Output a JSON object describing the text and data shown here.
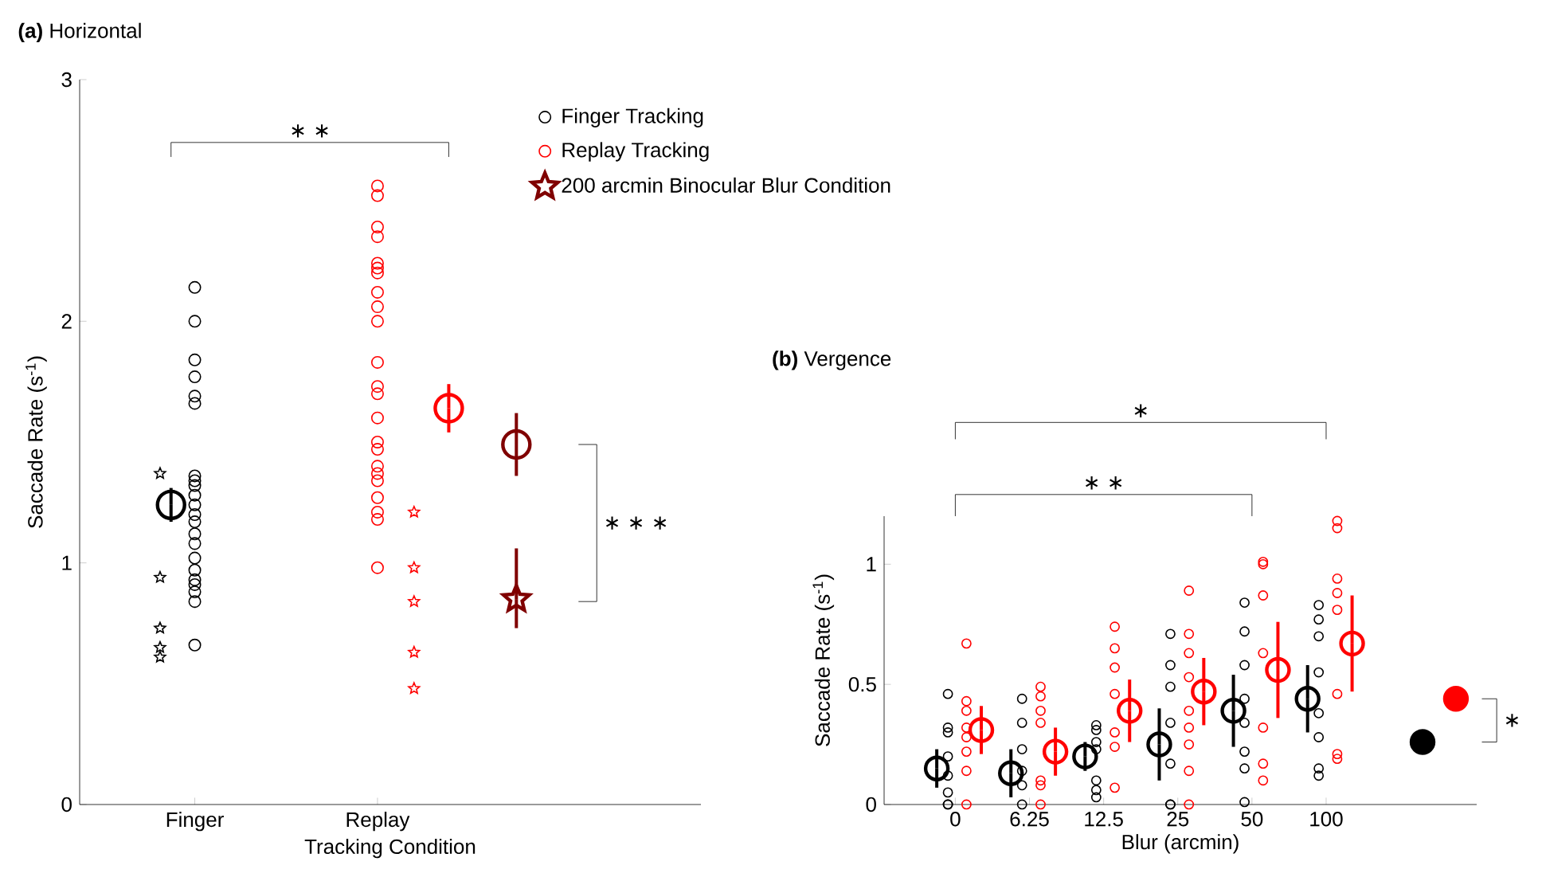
{
  "chart_data": [
    {
      "type": "scatter",
      "title": "**(a)** Horizontal",
      "xlabel": "Tracking Condition",
      "ylabel": "Saccade Rate (s$^{-1}$)",
      "categories": [
        "Finger",
        "Replay",
        null
      ],
      "ylim": [
        0,
        3
      ],
      "yticks": [
        0,
        1,
        2,
        3
      ],
      "legend": "top right",
      "annotations": [
        "∗ ∗",
        "∗ ∗ ∗"
      ],
      "series": [
        {
          "name": "Finger Tracking",
          "color": "#000000",
          "marker": "circle",
          "x": [
            "Finger",
            "Finger",
            "Finger",
            "Finger",
            "Finger",
            "Finger",
            "Finger",
            "Finger",
            "Finger",
            "Finger",
            "Finger",
            "Finger",
            "Finger",
            "Finger",
            "Finger",
            "Finger",
            "Finger",
            "Finger",
            "Finger",
            "Finger",
            "Finger",
            "Finger"
          ],
          "values": [
            2.14,
            2.0,
            1.84,
            1.77,
            1.69,
            1.66,
            1.36,
            1.34,
            1.32,
            1.28,
            1.24,
            1.2,
            1.17,
            1.12,
            1.08,
            1.02,
            0.97,
            0.93,
            0.91,
            0.88,
            0.84,
            0.66
          ]
        },
        {
          "name": "Replay Tracking",
          "color": "#ff0000",
          "marker": "circle",
          "x": [
            "Replay",
            "Replay",
            "Replay",
            "Replay",
            "Replay",
            "Replay",
            "Replay",
            "Replay",
            "Replay",
            "Replay",
            "Replay",
            "Replay",
            "Replay",
            "Replay",
            "Replay",
            "Replay",
            "Replay",
            "Replay",
            "Replay",
            "Replay",
            "Replay",
            "Replay",
            "Replay"
          ],
          "values": [
            2.56,
            2.52,
            2.39,
            2.35,
            2.24,
            2.22,
            2.2,
            2.12,
            2.06,
            2.0,
            1.83,
            1.73,
            1.7,
            1.6,
            1.5,
            1.47,
            1.4,
            1.37,
            1.34,
            1.27,
            1.21,
            1.18,
            0.98
          ]
        },
        {
          "color": "#000000",
          "marker": "star",
          "x": [
            "Finger",
            "Finger",
            "Finger",
            "Finger",
            "Finger"
          ],
          "values": [
            1.37,
            0.94,
            0.73,
            0.65,
            0.61
          ]
        },
        {
          "color": "#ff0000",
          "marker": "star",
          "x": [
            "Replay",
            "Replay",
            "Replay",
            "Replay",
            "Replay"
          ],
          "values": [
            1.21,
            0.98,
            0.84,
            0.63,
            0.48
          ]
        },
        {
          "color": "#000000",
          "marker": "circle",
          "x": [
            "Finger"
          ],
          "values": [
            1.24
          ],
          "errors": [
            0.07
          ]
        },
        {
          "color": "#ff0000",
          "marker": "circle",
          "x": [
            "Replay"
          ],
          "values": [
            1.64
          ],
          "errors": [
            0.1
          ]
        },
        {
          "color": "#800000",
          "marker": "circle",
          "values": [
            null,
            null,
            1.49
          ],
          "errors": [
            null,
            null,
            0.13
          ]
        },
        {
          "name": "200 arcmin Binocular Blur Condition",
          "color": "#800000",
          "marker": "star",
          "values": [
            null,
            null,
            0.85
          ],
          "errors": [
            null,
            null,
            [
              0.73,
              1.06
            ]
          ]
        }
      ]
    },
    {
      "type": "scatter",
      "title": "**(b)** Vergence",
      "xlabel": "Blur (arcmin)",
      "ylabel": "Saccade Rate (s$^{-1}$)",
      "categories": [
        "0",
        "6.25",
        "12.5",
        "25",
        "50",
        "100",
        null,
        null
      ],
      "ylim": [
        0,
        1.2
      ],
      "yticks": [
        0,
        0.5,
        1
      ],
      "annotations": [
        "∗",
        "∗ ∗",
        "∗"
      ],
      "series": [
        {
          "color": "#000000",
          "marker": "circle",
          "x": [
            "0",
            "0",
            "0",
            "0",
            "0",
            "0",
            "0",
            "0",
            "6.25",
            "6.25",
            "6.25",
            "6.25",
            "6.25",
            "6.25",
            "12.5",
            "12.5",
            "12.5",
            "12.5",
            "12.5",
            "12.5",
            "12.5",
            "25",
            "25",
            "25",
            "25",
            "25",
            "25",
            "25",
            "50",
            "50",
            "50",
            "50",
            "50",
            "50",
            "50",
            "50",
            "100",
            "100",
            "100",
            "100",
            "100",
            "100",
            "100",
            "100"
          ],
          "values": [
            0.46,
            0.32,
            0.3,
            0.2,
            0.12,
            0.05,
            0,
            0,
            0.44,
            0.34,
            0.23,
            0.14,
            0.08,
            0,
            0.33,
            0.31,
            0.26,
            0.23,
            0.1,
            0.06,
            0.03,
            0.71,
            0.58,
            0.49,
            0.34,
            0.17,
            0,
            0,
            0.84,
            0.72,
            0.58,
            0.44,
            0.34,
            0.22,
            0.15,
            0.01,
            0.83,
            0.77,
            0.7,
            0.55,
            0.38,
            0.28,
            0.15,
            0.12
          ]
        },
        {
          "color": "#ff0000",
          "marker": "circle",
          "x": [
            "0",
            "0",
            "0",
            "0",
            "0",
            "0",
            "0",
            "0",
            "6.25",
            "6.25",
            "6.25",
            "6.25",
            "6.25",
            "6.25",
            "6.25",
            "12.5",
            "12.5",
            "12.5",
            "12.5",
            "12.5",
            "12.5",
            "12.5",
            "25",
            "25",
            "25",
            "25",
            "25",
            "25",
            "25",
            "25",
            "25",
            "50",
            "50",
            "50",
            "50",
            "50",
            "50",
            "50",
            "100",
            "100",
            "100",
            "100",
            "100",
            "100",
            "100",
            "100"
          ],
          "values": [
            0.67,
            0.43,
            0.39,
            0.32,
            0.28,
            0.22,
            0.14,
            0,
            0.49,
            0.45,
            0.39,
            0.34,
            0.1,
            0.08,
            0,
            0.74,
            0.65,
            0.57,
            0.46,
            0.3,
            0.24,
            0.07,
            0.89,
            0.71,
            0.63,
            0.53,
            0.39,
            0.32,
            0.25,
            0.14,
            0,
            1.01,
            1.0,
            0.87,
            0.63,
            0.32,
            0.17,
            0.1,
            1.18,
            1.15,
            0.94,
            0.88,
            0.81,
            0.46,
            0.21,
            0.19
          ]
        },
        {
          "color": "#000000",
          "marker": "circle",
          "x": [
            "0",
            "6.25",
            "12.5",
            "25",
            "50",
            "100"
          ],
          "values": [
            0.15,
            0.13,
            0.2,
            0.25,
            0.39,
            0.44
          ],
          "errors": [
            0.08,
            0.1,
            0.06,
            0.15,
            0.15,
            0.14
          ]
        },
        {
          "color": "#ff0000",
          "marker": "circle",
          "x": [
            "0",
            "6.25",
            "12.5",
            "25",
            "50",
            "100"
          ],
          "values": [
            0.31,
            0.22,
            0.39,
            0.47,
            0.56,
            0.67
          ],
          "errors": [
            0.1,
            0.1,
            0.13,
            0.14,
            0.2,
            0.2
          ]
        },
        {
          "color": "#000000",
          "marker": "circle",
          "values": [
            null,
            null,
            null,
            null,
            null,
            null,
            0.26,
            null
          ]
        },
        {
          "color": "#ff0000",
          "marker": "circle",
          "values": [
            null,
            null,
            null,
            null,
            null,
            null,
            null,
            0.44
          ],
          "errors": [
            null,
            null,
            null,
            null,
            null,
            null,
            null,
            0.03
          ]
        }
      ]
    }
  ]
}
